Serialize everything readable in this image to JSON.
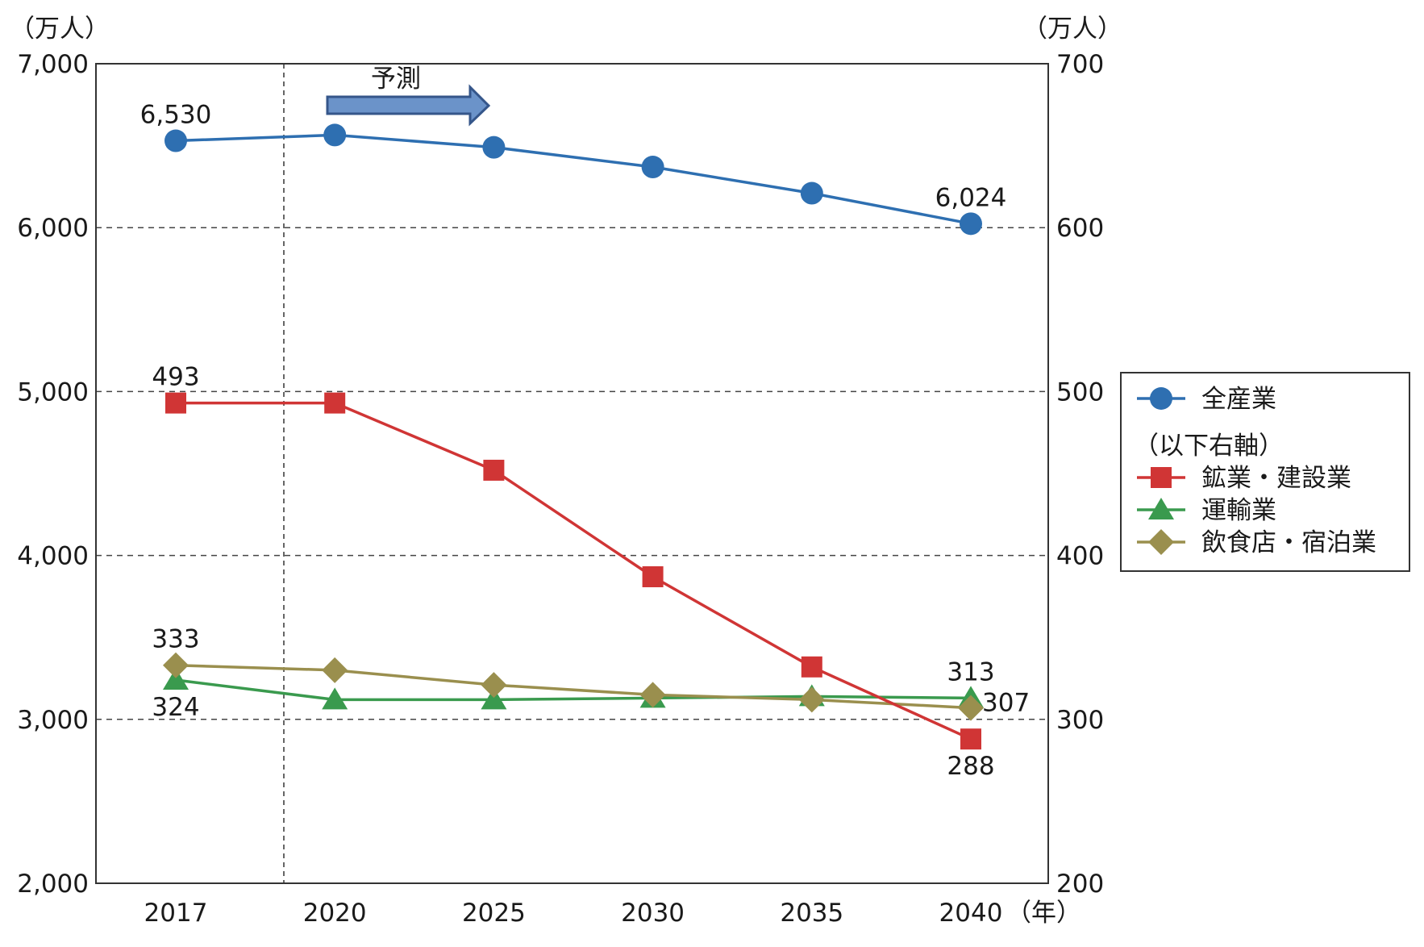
{
  "chart_data": {
    "type": "line",
    "x": [
      "2017",
      "2020",
      "2025",
      "2030",
      "2035",
      "2040"
    ],
    "x_unit": "（年）",
    "left_axis": {
      "unit": "（万人）",
      "ylim": [
        2000,
        7000
      ],
      "ticks": [
        "2,000",
        "3,000",
        "4,000",
        "5,000",
        "6,000",
        "7,000"
      ]
    },
    "right_axis": {
      "unit": "（万人）",
      "ylim": [
        200,
        700
      ],
      "ticks": [
        "200",
        "300",
        "400",
        "500",
        "600",
        "700"
      ]
    },
    "forecast_label": "予測",
    "legend_subheading": "（以下右軸）",
    "series": [
      {
        "name": "全産業",
        "axis": "left",
        "marker": "circle",
        "color": "#2e6fb1",
        "values": [
          6530,
          6565,
          6490,
          6370,
          6210,
          6024
        ],
        "labels": [
          {
            "index": 0,
            "text": "6,530",
            "pos": "above"
          },
          {
            "index": 5,
            "text": "6,024",
            "pos": "above"
          }
        ]
      },
      {
        "name": "鉱業・建設業",
        "axis": "right",
        "marker": "square",
        "color": "#d03535",
        "values": [
          493,
          493,
          452,
          387,
          332,
          288
        ],
        "labels": [
          {
            "index": 0,
            "text": "493",
            "pos": "above"
          },
          {
            "index": 5,
            "text": "288",
            "pos": "below"
          }
        ]
      },
      {
        "name": "運輸業",
        "axis": "right",
        "marker": "triangle",
        "color": "#3a9a4e",
        "values": [
          324,
          312,
          312,
          313,
          314,
          313
        ],
        "labels": [
          {
            "index": 0,
            "text": "324",
            "pos": "below"
          },
          {
            "index": 5,
            "text": "313",
            "pos": "above"
          }
        ]
      },
      {
        "name": "飲食店・宿泊業",
        "axis": "right",
        "marker": "diamond",
        "color": "#9a8f4e",
        "values": [
          333,
          330,
          321,
          315,
          312,
          307
        ],
        "labels": [
          {
            "index": 0,
            "text": "333",
            "pos": "above"
          },
          {
            "index": 5,
            "text": "307",
            "pos": "right"
          }
        ]
      }
    ]
  }
}
